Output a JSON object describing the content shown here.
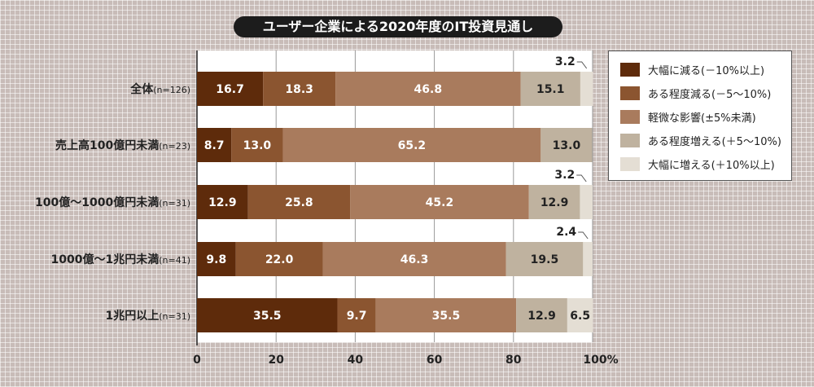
{
  "chart_data": {
    "type": "bar",
    "orientation": "horizontal",
    "stacked": true,
    "title": "ユーザー企業による2020年度のIT投資見通し",
    "categories": [
      {
        "label": "全体",
        "n": "(n=126)"
      },
      {
        "label": "売上高100億円未満",
        "n": "(n=23)"
      },
      {
        "label": "100億～1000億円未満",
        "n": "(n=31)"
      },
      {
        "label": "1000億～1兆円未満",
        "n": "(n=41)"
      },
      {
        "label": "1兆円以上",
        "n": "(n=31)"
      }
    ],
    "series": [
      {
        "name": "大幅に減る(－10%以上)",
        "color": "#5e2b0b",
        "values": [
          16.7,
          8.7,
          12.9,
          9.8,
          35.5
        ]
      },
      {
        "name": "ある程度減る(－5～10%)",
        "color": "#8b5530",
        "values": [
          18.3,
          13.0,
          25.8,
          22.0,
          9.7
        ]
      },
      {
        "name": "軽微な影響(±5%未満)",
        "color": "#a97b5d",
        "values": [
          46.8,
          65.2,
          45.2,
          46.3,
          35.5
        ]
      },
      {
        "name": "ある程度増える(＋5～10%)",
        "color": "#bfb29f",
        "values": [
          15.1,
          13.0,
          12.9,
          19.5,
          12.9
        ]
      },
      {
        "name": "大幅に増える(＋10%以上)",
        "color": "#e4ded4",
        "values": [
          3.2,
          null,
          3.2,
          2.4,
          6.5
        ]
      }
    ],
    "xlim": [
      0,
      100
    ],
    "xticks": [
      "0",
      "20",
      "40",
      "60",
      "80",
      "100%"
    ],
    "legend_position": "right",
    "grid": true
  }
}
